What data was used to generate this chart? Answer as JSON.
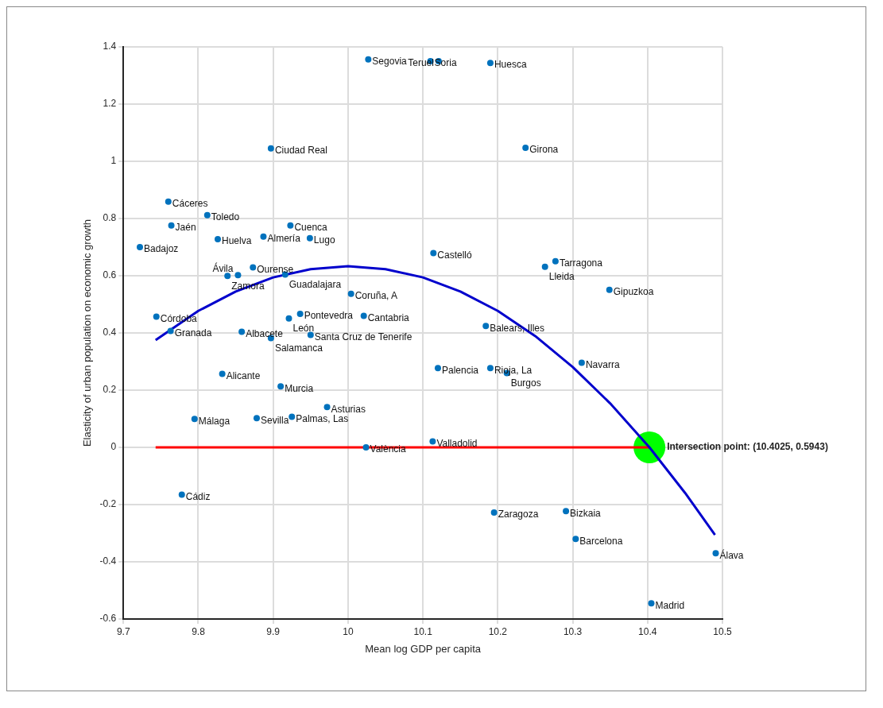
{
  "chart_data": {
    "type": "scatter",
    "xlabel": "Mean log GDP per capita",
    "ylabel": "Elasticity of urban population on economic growth",
    "xlim": [
      9.7,
      10.5
    ],
    "xticks": [
      9.7,
      9.8,
      9.9,
      10,
      10.1,
      10.2,
      10.3,
      10.4,
      10.5
    ],
    "ylim": [
      -0.6,
      1.4
    ],
    "yticks": [
      -0.6,
      -0.4,
      -0.2,
      0,
      0.2,
      0.4,
      0.6,
      0.8,
      1,
      1.2,
      1.4
    ],
    "grid": true,
    "marker": "circle",
    "annotations": [
      {
        "text": "Intersection point: (10.4025, 0.5943)",
        "x": 10.4025,
        "y": 0
      }
    ],
    "series": [
      {
        "type": "line",
        "color": "#0000cc",
        "line_style": "solid",
        "marker": "none",
        "x": [
          9.743,
          9.8,
          9.85,
          9.9,
          9.95,
          10.0,
          10.05,
          10.1,
          10.15,
          10.2,
          10.25,
          10.3,
          10.35,
          10.4025,
          10.45,
          10.49
        ],
        "values": [
          0.375,
          0.477,
          0.545,
          0.594,
          0.623,
          0.633,
          0.623,
          0.594,
          0.545,
          0.477,
          0.389,
          0.281,
          0.154,
          0.0,
          -0.159,
          -0.306
        ]
      },
      {
        "type": "line",
        "color": "#ff0000",
        "line_style": "solid",
        "marker": "none",
        "x": [
          9.743,
          10.4025
        ],
        "values": [
          0,
          0
        ]
      },
      {
        "type": "scatter",
        "color": "#00ff00",
        "x": [
          10.4025
        ],
        "values": [
          0
        ]
      },
      {
        "name": "Segovia",
        "color": "#0072bd",
        "x": [
          10.027
        ],
        "values": [
          1.356
        ]
      },
      {
        "name": "Soria",
        "color": "#0072bd",
        "x": [
          10.11
        ],
        "values": [
          1.35
        ]
      },
      {
        "name": "Teruel",
        "color": "#0072bd",
        "x": [
          10.121
        ],
        "values": [
          1.35
        ]
      },
      {
        "name": "Huesca",
        "color": "#0072bd",
        "x": [
          10.19
        ],
        "values": [
          1.344
        ]
      },
      {
        "name": "Ciudad Real",
        "color": "#0072bd",
        "x": [
          9.897
        ],
        "values": [
          1.045
        ]
      },
      {
        "name": "Girona",
        "color": "#0072bd",
        "x": [
          10.237
        ],
        "values": [
          1.047
        ]
      },
      {
        "name": "Cáceres",
        "color": "#0072bd",
        "x": [
          9.76
        ],
        "values": [
          0.859
        ]
      },
      {
        "name": "Toledo",
        "color": "#0072bd",
        "x": [
          9.812
        ],
        "values": [
          0.812
        ]
      },
      {
        "name": "Jaén",
        "color": "#0072bd",
        "x": [
          9.764
        ],
        "values": [
          0.776
        ]
      },
      {
        "name": "Cuenca",
        "color": "#0072bd",
        "x": [
          9.923
        ],
        "values": [
          0.776
        ]
      },
      {
        "name": "Almería",
        "color": "#0072bd",
        "x": [
          9.887
        ],
        "values": [
          0.737
        ]
      },
      {
        "name": "Lugo",
        "color": "#0072bd",
        "x": [
          9.949
        ],
        "values": [
          0.731
        ]
      },
      {
        "name": "Huelva",
        "color": "#0072bd",
        "x": [
          9.826
        ],
        "values": [
          0.728
        ]
      },
      {
        "name": "Badajoz",
        "color": "#0072bd",
        "x": [
          9.722
        ],
        "values": [
          0.7
        ]
      },
      {
        "name": "Castelló",
        "color": "#0072bd",
        "x": [
          10.114
        ],
        "values": [
          0.679
        ]
      },
      {
        "name": "Tarragona",
        "color": "#0072bd",
        "x": [
          10.277
        ],
        "values": [
          0.651
        ]
      },
      {
        "name": "Lleida",
        "color": "#0072bd",
        "x": [
          10.263
        ],
        "values": [
          0.631
        ]
      },
      {
        "name": "Ourense",
        "color": "#0072bd",
        "x": [
          9.873
        ],
        "values": [
          0.629
        ]
      },
      {
        "name": "Zamora",
        "color": "#0072bd",
        "x": [
          9.839
        ],
        "values": [
          0.599
        ]
      },
      {
        "name": "Ávila",
        "color": "#0072bd",
        "x": [
          9.853
        ],
        "values": [
          0.602
        ]
      },
      {
        "name": "Guadalajara",
        "color": "#0072bd",
        "x": [
          9.916
        ],
        "values": [
          0.604
        ]
      },
      {
        "name": "Gipuzkoa",
        "color": "#0072bd",
        "x": [
          10.349
        ],
        "values": [
          0.551
        ]
      },
      {
        "name": "Coruña, A",
        "color": "#0072bd",
        "x": [
          10.004
        ],
        "values": [
          0.537
        ]
      },
      {
        "name": "Córdoba",
        "color": "#0072bd",
        "x": [
          9.744
        ],
        "values": [
          0.457
        ]
      },
      {
        "name": "Pontevedra",
        "color": "#0072bd",
        "x": [
          9.936
        ],
        "values": [
          0.467
        ]
      },
      {
        "name": "León",
        "color": "#0072bd",
        "x": [
          9.921
        ],
        "values": [
          0.451
        ]
      },
      {
        "name": "Cantabria",
        "color": "#0072bd",
        "x": [
          10.021
        ],
        "values": [
          0.46
        ]
      },
      {
        "name": "Balears, Illes",
        "color": "#0072bd",
        "x": [
          10.184
        ],
        "values": [
          0.424
        ]
      },
      {
        "name": "Granada",
        "color": "#0072bd",
        "x": [
          9.763
        ],
        "values": [
          0.407
        ]
      },
      {
        "name": "Albacete",
        "color": "#0072bd",
        "x": [
          9.858
        ],
        "values": [
          0.404
        ]
      },
      {
        "name": "Salamanca",
        "color": "#0072bd",
        "x": [
          9.897
        ],
        "values": [
          0.382
        ]
      },
      {
        "name": "Santa Cruz de Tenerife",
        "color": "#0072bd",
        "x": [
          9.95
        ],
        "values": [
          0.393
        ]
      },
      {
        "name": "Navarra",
        "color": "#0072bd",
        "x": [
          10.312
        ],
        "values": [
          0.296
        ]
      },
      {
        "name": "Palencia",
        "color": "#0072bd",
        "x": [
          10.12
        ],
        "values": [
          0.277
        ]
      },
      {
        "name": "Rioja, La",
        "color": "#0072bd",
        "x": [
          10.19
        ],
        "values": [
          0.277
        ]
      },
      {
        "name": "Burgos",
        "color": "#0072bd",
        "x": [
          10.212
        ],
        "values": [
          0.26
        ]
      },
      {
        "name": "Alicante",
        "color": "#0072bd",
        "x": [
          9.832
        ],
        "values": [
          0.257
        ]
      },
      {
        "name": "Murcia",
        "color": "#0072bd",
        "x": [
          9.91
        ],
        "values": [
          0.213
        ]
      },
      {
        "name": "Asturias",
        "color": "#0072bd",
        "x": [
          9.972
        ],
        "values": [
          0.141
        ]
      },
      {
        "name": "Málaga",
        "color": "#0072bd",
        "x": [
          9.795
        ],
        "values": [
          0.099
        ]
      },
      {
        "name": "Sevilla",
        "color": "#0072bd",
        "x": [
          9.878
        ],
        "values": [
          0.102
        ]
      },
      {
        "name": "Palmas, Las",
        "color": "#0072bd",
        "x": [
          9.925
        ],
        "values": [
          0.107
        ]
      },
      {
        "name": "València",
        "color": "#0072bd",
        "x": [
          10.024
        ],
        "values": [
          0.0
        ]
      },
      {
        "name": "Valladolid",
        "color": "#0072bd",
        "x": [
          10.113
        ],
        "values": [
          0.021
        ]
      },
      {
        "name": "Cádiz",
        "color": "#0072bd",
        "x": [
          9.778
        ],
        "values": [
          -0.165
        ]
      },
      {
        "name": "Zaragoza",
        "color": "#0072bd",
        "x": [
          10.195
        ],
        "values": [
          -0.228
        ]
      },
      {
        "name": "Bizkaia",
        "color": "#0072bd",
        "x": [
          10.291
        ],
        "values": [
          -0.223
        ]
      },
      {
        "name": "Barcelona",
        "color": "#0072bd",
        "x": [
          10.304
        ],
        "values": [
          -0.32
        ]
      },
      {
        "name": "Álava",
        "color": "#0072bd",
        "x": [
          10.491
        ],
        "values": [
          -0.37
        ]
      },
      {
        "name": "Madrid",
        "color": "#0072bd",
        "x": [
          10.405
        ],
        "values": [
          -0.545
        ]
      }
    ]
  }
}
